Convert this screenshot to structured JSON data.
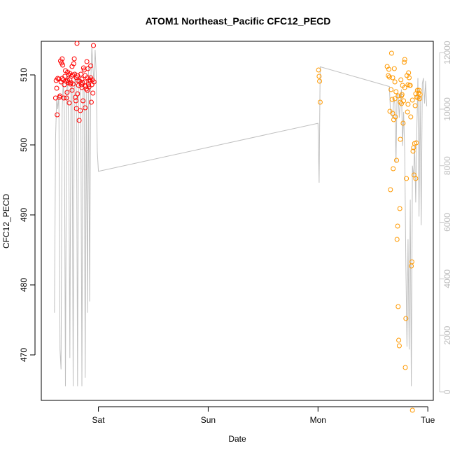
{
  "chart_data": {
    "type": "scatter",
    "title": "ATOM1 Northeast_Pacific CFC12_PECD",
    "xlabel": "Date",
    "ylabel": "CFC12_PECD",
    "x_ticks": [
      {
        "label": "Sat",
        "day": 0
      },
      {
        "label": "Sun",
        "day": 1
      },
      {
        "label": "Mon",
        "day": 2
      },
      {
        "label": "Tue",
        "day": 3
      }
    ],
    "xlim_days": [
      -0.52,
      3.05
    ],
    "ylim": [
      463.5,
      514.8
    ],
    "y_ticks": [
      470,
      480,
      490,
      500,
      510
    ],
    "right_axis": {
      "ylim": [
        -300,
        12400
      ],
      "ticks": [
        0,
        2000,
        4000,
        6000,
        8000,
        10000,
        12000
      ],
      "color": "#bbbbbb"
    },
    "colors": {
      "group1": "#ff0000",
      "group2": "#ff9900",
      "depth_line": "#c0c0c0"
    },
    "series": [
      {
        "group": "group1",
        "points": [
          [
            -0.39,
            506.7
          ],
          [
            -0.385,
            509.2
          ],
          [
            -0.38,
            508.1
          ],
          [
            -0.375,
            504.3
          ],
          [
            -0.37,
            509.5
          ],
          [
            -0.36,
            509.4
          ],
          [
            -0.355,
            506.8
          ],
          [
            -0.35,
            507.0
          ],
          [
            -0.345,
            512.0
          ],
          [
            -0.34,
            509.0
          ],
          [
            -0.335,
            511.7
          ],
          [
            -0.33,
            512.3
          ],
          [
            -0.325,
            511.4
          ],
          [
            -0.32,
            509.3
          ],
          [
            -0.315,
            506.7
          ],
          [
            -0.31,
            508.6
          ],
          [
            -0.305,
            509.8
          ],
          [
            -0.3,
            510.6
          ],
          [
            -0.295,
            509.1
          ],
          [
            -0.29,
            506.7
          ],
          [
            -0.285,
            507.5
          ],
          [
            -0.28,
            510.4
          ],
          [
            -0.275,
            508.9
          ],
          [
            -0.27,
            510.0
          ],
          [
            -0.265,
            506.0
          ],
          [
            -0.26,
            509.3
          ],
          [
            -0.255,
            508.7
          ],
          [
            -0.25,
            508.9
          ],
          [
            -0.245,
            509.8
          ],
          [
            -0.24,
            511.2
          ],
          [
            -0.235,
            510.0
          ],
          [
            -0.23,
            508.7
          ],
          [
            -0.225,
            511.6
          ],
          [
            -0.22,
            512.3
          ],
          [
            -0.215,
            510.1
          ],
          [
            -0.21,
            506.8
          ],
          [
            -0.205,
            506.3
          ],
          [
            -0.2,
            505.2
          ],
          [
            -0.195,
            514.5
          ],
          [
            -0.19,
            509.9
          ],
          [
            -0.185,
            509.2
          ],
          [
            -0.18,
            508.5
          ],
          [
            -0.175,
            503.5
          ],
          [
            -0.17,
            509.1
          ],
          [
            -0.165,
            504.9
          ],
          [
            -0.16,
            510.1
          ],
          [
            -0.155,
            508.6
          ],
          [
            -0.15,
            509.4
          ],
          [
            -0.145,
            508.9
          ],
          [
            -0.14,
            506.3
          ],
          [
            -0.135,
            511.0
          ],
          [
            -0.13,
            510.7
          ],
          [
            -0.125,
            509.0
          ],
          [
            -0.12,
            505.3
          ],
          [
            -0.115,
            508.4
          ],
          [
            -0.11,
            508.0
          ],
          [
            -0.105,
            511.9
          ],
          [
            -0.1,
            509.6
          ],
          [
            -0.095,
            510.9
          ],
          [
            -0.09,
            508.6
          ],
          [
            -0.085,
            508.3
          ],
          [
            -0.08,
            509.3
          ],
          [
            -0.075,
            509.1
          ],
          [
            -0.07,
            509.6
          ],
          [
            -0.065,
            506.1
          ],
          [
            -0.06,
            508.6
          ],
          [
            -0.055,
            509.3
          ],
          [
            -0.05,
            507.4
          ],
          [
            -0.045,
            514.2
          ],
          [
            -0.04,
            509.0
          ],
          [
            -0.33,
            509.5
          ],
          [
            -0.28,
            509.2
          ],
          [
            -0.24,
            507.8
          ],
          [
            -0.2,
            509.6
          ],
          [
            -0.15,
            508.2
          ],
          [
            -0.1,
            507.8
          ],
          [
            -0.07,
            511.3
          ],
          [
            -0.26,
            510.2
          ],
          [
            -0.19,
            507.3
          ],
          [
            -0.12,
            509.9
          ]
        ]
      },
      {
        "group": "group2",
        "points": [
          [
            2.005,
            510.7
          ],
          [
            2.01,
            509.8
          ],
          [
            2.015,
            509.1
          ],
          [
            2.02,
            506.1
          ],
          [
            2.63,
            511.2
          ],
          [
            2.64,
            509.9
          ],
          [
            2.645,
            510.8
          ],
          [
            2.65,
            509.7
          ],
          [
            2.655,
            504.8
          ],
          [
            2.66,
            493.6
          ],
          [
            2.665,
            507.9
          ],
          [
            2.67,
            513.1
          ],
          [
            2.675,
            506.5
          ],
          [
            2.68,
            504.5
          ],
          [
            2.685,
            496.6
          ],
          [
            2.69,
            503.6
          ],
          [
            2.695,
            510.9
          ],
          [
            2.7,
            509.0
          ],
          [
            2.705,
            504.0
          ],
          [
            2.71,
            507.6
          ],
          [
            2.715,
            497.8
          ],
          [
            2.72,
            486.5
          ],
          [
            2.725,
            488.4
          ],
          [
            2.73,
            476.9
          ],
          [
            2.735,
            472.1
          ],
          [
            2.74,
            471.3
          ],
          [
            2.745,
            490.9
          ],
          [
            2.75,
            500.8
          ],
          [
            2.755,
            509.3
          ],
          [
            2.76,
            505.9
          ],
          [
            2.765,
            507.2
          ],
          [
            2.77,
            508.5
          ],
          [
            2.775,
            503.1
          ],
          [
            2.78,
            506.3
          ],
          [
            2.785,
            511.8
          ],
          [
            2.79,
            512.2
          ],
          [
            2.795,
            468.2
          ],
          [
            2.8,
            475.2
          ],
          [
            2.805,
            495.2
          ],
          [
            2.81,
            509.9
          ],
          [
            2.815,
            504.7
          ],
          [
            2.82,
            508.6
          ],
          [
            2.825,
            510.3
          ],
          [
            2.83,
            509.6
          ],
          [
            2.835,
            508.5
          ],
          [
            2.84,
            508.5
          ],
          [
            2.845,
            504.0
          ],
          [
            2.85,
            482.7
          ],
          [
            2.855,
            483.3
          ],
          [
            2.86,
            462.1
          ],
          [
            2.865,
            499.1
          ],
          [
            2.87,
            499.6
          ],
          [
            2.875,
            495.7
          ],
          [
            2.88,
            500.2
          ],
          [
            2.885,
            505.6
          ],
          [
            2.89,
            507.3
          ],
          [
            2.895,
            500.3
          ],
          [
            2.9,
            506.8
          ],
          [
            2.905,
            507.8
          ],
          [
            2.91,
            506.8
          ],
          [
            2.915,
            507.4
          ],
          [
            2.92,
            507.8
          ],
          [
            2.925,
            506.6
          ],
          [
            2.93,
            507.2
          ],
          [
            2.7,
            506.6
          ],
          [
            2.73,
            507.0
          ],
          [
            2.76,
            507.0
          ],
          [
            2.79,
            508.2
          ],
          [
            2.86,
            506.4
          ],
          [
            2.89,
            495.2
          ],
          [
            2.68,
            509.6
          ],
          [
            2.75,
            506.1
          ],
          [
            2.82,
            505.8
          ]
        ]
      }
    ],
    "depth_profile": {
      "points": [
        [
          -0.4,
          2800
        ],
        [
          -0.39,
          9000
        ],
        [
          -0.38,
          10400
        ],
        [
          -0.37,
          10000
        ],
        [
          -0.36,
          10500
        ],
        [
          -0.35,
          1500
        ],
        [
          -0.34,
          800
        ],
        [
          -0.33,
          10000
        ],
        [
          -0.32,
          11000
        ],
        [
          -0.31,
          10000
        ],
        [
          -0.3,
          200
        ],
        [
          -0.29,
          10500
        ],
        [
          -0.28,
          11200
        ],
        [
          -0.27,
          9000
        ],
        [
          -0.26,
          1200
        ],
        [
          -0.25,
          10800
        ],
        [
          -0.24,
          11000
        ],
        [
          -0.23,
          200
        ],
        [
          -0.22,
          10700
        ],
        [
          -0.21,
          11300
        ],
        [
          -0.2,
          10500
        ],
        [
          -0.19,
          200
        ],
        [
          -0.18,
          10800
        ],
        [
          -0.17,
          11200
        ],
        [
          -0.16,
          9900
        ],
        [
          -0.15,
          200
        ],
        [
          -0.14,
          11000
        ],
        [
          -0.13,
          10800
        ],
        [
          -0.12,
          500
        ],
        [
          -0.11,
          10600
        ],
        [
          -0.1,
          2800
        ],
        [
          -0.09,
          11500
        ],
        [
          -0.08,
          3200
        ],
        [
          -0.07,
          10900
        ],
        [
          -0.06,
          12200
        ],
        [
          -0.05,
          11500
        ],
        [
          -0.04,
          10900
        ],
        [
          -0.03,
          12100
        ],
        [
          -0.02,
          11300
        ],
        [
          -0.01,
          8500
        ],
        [
          0.0,
          7800
        ],
        [
          2.0,
          9500
        ],
        [
          2.01,
          7400
        ],
        [
          2.02,
          11500
        ],
        [
          2.65,
          10800
        ],
        [
          2.66,
          9900
        ],
        [
          2.68,
          9700
        ],
        [
          2.69,
          10400
        ],
        [
          2.7,
          10200
        ],
        [
          2.71,
          8100
        ],
        [
          2.72,
          10500
        ],
        [
          2.73,
          10500
        ],
        [
          2.74,
          9700
        ],
        [
          2.75,
          10300
        ],
        [
          2.76,
          10700
        ],
        [
          2.77,
          8700
        ],
        [
          2.78,
          9900
        ],
        [
          2.79,
          8500
        ],
        [
          2.8,
          4500
        ],
        [
          2.81,
          1600
        ],
        [
          2.82,
          5400
        ],
        [
          2.83,
          1500
        ],
        [
          2.84,
          6800
        ],
        [
          2.85,
          200
        ],
        [
          2.86,
          8000
        ],
        [
          2.87,
          7600
        ],
        [
          2.88,
          8700
        ],
        [
          2.89,
          6700
        ],
        [
          2.9,
          9300
        ],
        [
          2.91,
          11100
        ],
        [
          2.92,
          6200
        ],
        [
          2.93,
          10500
        ],
        [
          2.94,
          5900
        ],
        [
          2.95,
          10900
        ],
        [
          2.96,
          11100
        ],
        [
          2.97,
          10200
        ],
        [
          2.98,
          11000
        ],
        [
          2.99,
          10100
        ]
      ]
    }
  }
}
